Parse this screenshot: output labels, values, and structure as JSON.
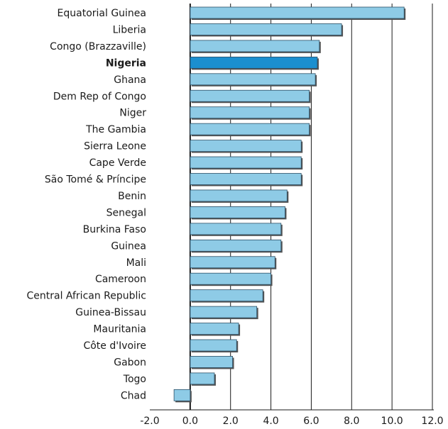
{
  "chart_data": {
    "type": "bar",
    "orientation": "horizontal",
    "categories": [
      "Equatorial Guinea",
      "Liberia",
      "Congo (Brazzaville)",
      "Nigeria",
      "Ghana",
      "Dem Rep of Congo",
      "Niger",
      "The Gambia",
      "Sierra Leone",
      "Cape Verde",
      "São Tomé & Príncipe",
      "Benin",
      "Senegal",
      "Burkina Faso",
      "Guinea",
      "Mali",
      "Cameroon",
      "Central African Republic",
      "Guinea-Bissau",
      "Mauritania",
      "Côte d'Ivoire",
      "Gabon",
      "Togo",
      "Chad"
    ],
    "values": [
      10.6,
      7.5,
      6.4,
      6.3,
      6.2,
      5.9,
      5.9,
      5.9,
      5.5,
      5.5,
      5.5,
      4.8,
      4.7,
      4.5,
      4.5,
      4.2,
      4.0,
      3.6,
      3.3,
      2.4,
      2.3,
      2.1,
      1.2,
      -0.8
    ],
    "highlight": "Nigeria",
    "xlim": [
      -2.0,
      12.0
    ],
    "xticks": [
      "-2.0",
      "0.0",
      "2.0",
      "4.0",
      "6.0",
      "8.0",
      "10.0",
      "12.0"
    ],
    "xtick_values": [
      -2,
      0,
      2,
      4,
      6,
      8,
      10,
      12
    ],
    "grid": true,
    "title": "",
    "xlabel": "",
    "ylabel": ""
  },
  "colors": {
    "bar": "#8ecbe6",
    "bar_highlight": "#1b8fcf",
    "bar_stroke": "#2c4f66",
    "shadow": "#555555",
    "grid": "#1a1a1a",
    "text": "#1a1a1a"
  }
}
